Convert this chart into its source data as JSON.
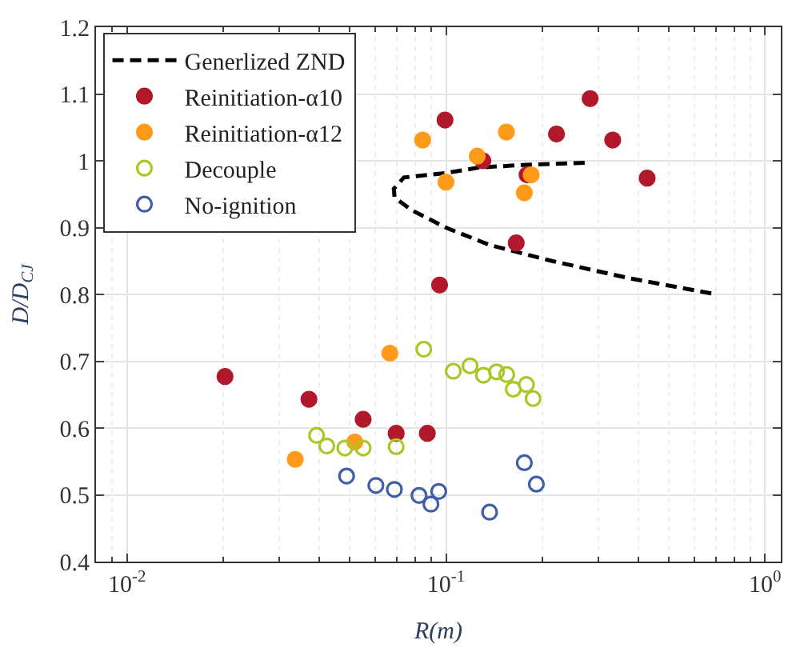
{
  "chart_data": {
    "type": "scatter",
    "xlabel": "R(m)",
    "ylabel": "D/D$_{CJ}$",
    "log": "x",
    "xlim": [
      0.008,
      1.12
    ],
    "ylim": [
      0.4,
      1.2
    ],
    "xticks": [
      {
        "value": 0.01,
        "label": "10$^{-2}$"
      },
      {
        "value": 0.1,
        "label": "10$^{-1}$"
      },
      {
        "value": 1,
        "label": "10$^{0}$"
      }
    ],
    "yticks": [
      0.4,
      0.5,
      0.6,
      0.7,
      0.8,
      0.9,
      1,
      1.1,
      1.2
    ],
    "grid": true,
    "legend": "top left",
    "series": [
      {
        "name": "Generlized ZND",
        "type": "line",
        "line_style": "dashed",
        "marker": "none",
        "color": "#000000",
        "x": [
          0.272,
          0.178,
          0.127,
          0.101,
          0.0738,
          0.0686,
          0.069,
          0.0781,
          0.101,
          0.137,
          0.215,
          0.377,
          0.686
        ],
        "values": [
          0.997,
          0.994,
          0.99,
          0.982,
          0.975,
          0.958,
          0.945,
          0.926,
          0.899,
          0.874,
          0.85,
          0.824,
          0.801
        ]
      },
      {
        "name": "Reinitiation-α10",
        "marker": "circle",
        "color": "#b2182b",
        "x": [
          0.0203,
          0.0372,
          0.055,
          0.0698,
          0.0874,
          0.0993,
          0.1305,
          0.1795,
          0.222,
          0.283,
          0.333,
          0.427,
          0.166,
          0.0955
        ],
        "values": [
          0.677,
          0.643,
          0.613,
          0.592,
          0.592,
          1.061,
          1.0,
          0.979,
          1.04,
          1.093,
          1.031,
          0.974,
          0.877,
          0.814
        ]
      },
      {
        "name": "Reinitiation-α12",
        "marker": "circle",
        "color": "#ff9a1a",
        "x": [
          0.0337,
          0.0518,
          0.0667,
          0.0845,
          0.1,
          0.1253,
          0.1546,
          0.185,
          0.176
        ],
        "values": [
          0.553,
          0.579,
          0.712,
          1.031,
          0.968,
          1.007,
          1.043,
          0.979,
          0.952
        ]
      },
      {
        "name": "Decouple",
        "marker": "circle-open",
        "color": "#a8c828",
        "x": [
          0.0393,
          0.0423,
          0.0482,
          0.055,
          0.0698,
          0.0852,
          0.1054,
          0.119,
          0.131,
          0.144,
          0.155,
          0.1625,
          0.1786,
          0.1875
        ],
        "values": [
          0.589,
          0.573,
          0.57,
          0.57,
          0.572,
          0.718,
          0.685,
          0.693,
          0.679,
          0.684,
          0.68,
          0.658,
          0.665,
          0.644
        ]
      },
      {
        "name": "No-ignition",
        "marker": "circle-open",
        "color": "#3f5fa8",
        "x": [
          0.0488,
          0.0603,
          0.0689,
          0.0823,
          0.0897,
          0.0949,
          0.137,
          0.176,
          0.192
        ],
        "values": [
          0.528,
          0.514,
          0.508,
          0.499,
          0.486,
          0.505,
          0.474,
          0.548,
          0.516
        ]
      }
    ]
  }
}
